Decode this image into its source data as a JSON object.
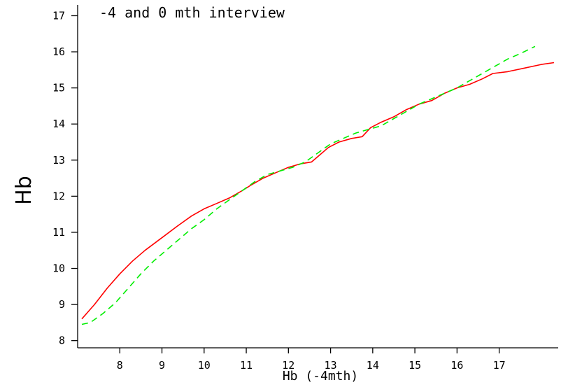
{
  "chart_data": {
    "type": "line",
    "title": "-4 and 0 mth interview",
    "xlabel": "Hb (-4mth)",
    "ylabel": "Hb",
    "xlim": [
      7,
      18.4
    ],
    "ylim": [
      7.8,
      17.3
    ],
    "xticks": [
      "8",
      "9",
      "10",
      "11",
      "12",
      "13",
      "14",
      "15",
      "16",
      "17"
    ],
    "yticks": [
      "8",
      "9",
      "10",
      "11",
      "12",
      "13",
      "14",
      "15",
      "16",
      "17"
    ],
    "grid": false,
    "series": [
      {
        "color": "#ff0000",
        "style": "solid",
        "x": [
          7.1,
          7.4,
          7.7,
          8.0,
          8.3,
          8.6,
          9.0,
          9.4,
          9.7,
          10.0,
          10.3,
          10.6,
          10.9,
          11.1,
          11.4,
          11.7,
          12.0,
          12.3,
          12.55,
          12.7,
          12.95,
          13.2,
          13.5,
          13.75,
          13.95,
          14.2,
          14.5,
          14.8,
          15.1,
          15.4,
          15.7,
          16.0,
          16.3,
          16.6,
          16.85,
          17.2,
          17.6,
          18.0,
          18.3
        ],
        "y": [
          8.6,
          9.0,
          9.45,
          9.85,
          10.2,
          10.5,
          10.85,
          11.2,
          11.45,
          11.65,
          11.8,
          11.95,
          12.15,
          12.3,
          12.5,
          12.65,
          12.8,
          12.9,
          12.95,
          13.1,
          13.35,
          13.5,
          13.6,
          13.65,
          13.9,
          14.05,
          14.2,
          14.4,
          14.55,
          14.65,
          14.85,
          15.0,
          15.1,
          15.25,
          15.4,
          15.45,
          15.55,
          15.65,
          15.7
        ]
      },
      {
        "color": "#00ee00",
        "style": "dashed",
        "x": [
          7.1,
          7.3,
          7.6,
          7.9,
          8.2,
          8.5,
          8.8,
          9.1,
          9.4,
          9.7,
          10.0,
          10.3,
          10.6,
          10.9,
          11.2,
          11.5,
          11.8,
          12.1,
          12.4,
          12.7,
          13.0,
          13.3,
          13.6,
          13.9,
          14.2,
          14.5,
          14.8,
          15.1,
          15.4,
          15.7,
          16.0,
          16.3,
          16.6,
          16.9,
          17.2,
          17.5,
          17.85
        ],
        "y": [
          8.45,
          8.5,
          8.75,
          9.05,
          9.45,
          9.85,
          10.2,
          10.5,
          10.8,
          11.1,
          11.35,
          11.65,
          11.9,
          12.15,
          12.4,
          12.6,
          12.7,
          12.8,
          12.95,
          13.2,
          13.45,
          13.6,
          13.75,
          13.85,
          13.95,
          14.15,
          14.35,
          14.55,
          14.7,
          14.85,
          15.0,
          15.2,
          15.4,
          15.6,
          15.8,
          15.95,
          16.15
        ]
      }
    ]
  }
}
